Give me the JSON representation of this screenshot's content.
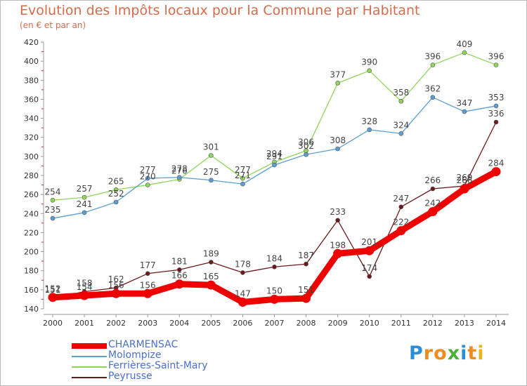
{
  "title": "Evolution des Impôts locaux pour la Commune par Habitant",
  "subtitle": "(en € et par an)",
  "logo": {
    "letters": [
      "P",
      "r",
      "o",
      "x",
      "i",
      "t",
      "i"
    ],
    "colors": [
      "#2c8fd6",
      "#f08c1f",
      "#f08c1f",
      "#4caf3a",
      "#2c8fd6",
      "#f08c1f",
      "#e3b51f"
    ]
  },
  "chart_data": {
    "type": "line",
    "x": [
      "2000",
      "2001",
      "2002",
      "2003",
      "2004",
      "2005",
      "2006",
      "2007",
      "2008",
      "2009",
      "2010",
      "2011",
      "2012",
      "2013",
      "2014"
    ],
    "ylim": [
      140,
      420
    ],
    "yticks": [
      "140",
      "160",
      "180",
      "200",
      "220",
      "240",
      "260",
      "280",
      "300",
      "320",
      "340",
      "360",
      "380",
      "400",
      "420"
    ],
    "grid": false,
    "legend_position": "bottom-left",
    "series": [
      {
        "name": "CHARMENSAC",
        "color": "#ee0000",
        "values": [
          152,
          154,
          156,
          156,
          166,
          165,
          147,
          150,
          151,
          198,
          201,
          222,
          242,
          266,
          284
        ]
      },
      {
        "name": "Molompize",
        "color": "#5b9ed4",
        "values": [
          235,
          241,
          252,
          277,
          278,
          275,
          271,
          291,
          302,
          308,
          328,
          324,
          362,
          347,
          353
        ]
      },
      {
        "name": "Ferrières-Saint-Mary",
        "color": "#8fd65a",
        "values": [
          254,
          257,
          265,
          270,
          276,
          301,
          277,
          294,
          306,
          377,
          390,
          358,
          396,
          409,
          396
        ]
      },
      {
        "name": "Peyrusse",
        "color": "#6b1a1a",
        "values": [
          151,
          158,
          162,
          177,
          181,
          189,
          178,
          184,
          187,
          233,
          174,
          247,
          266,
          269,
          336
        ]
      }
    ]
  }
}
